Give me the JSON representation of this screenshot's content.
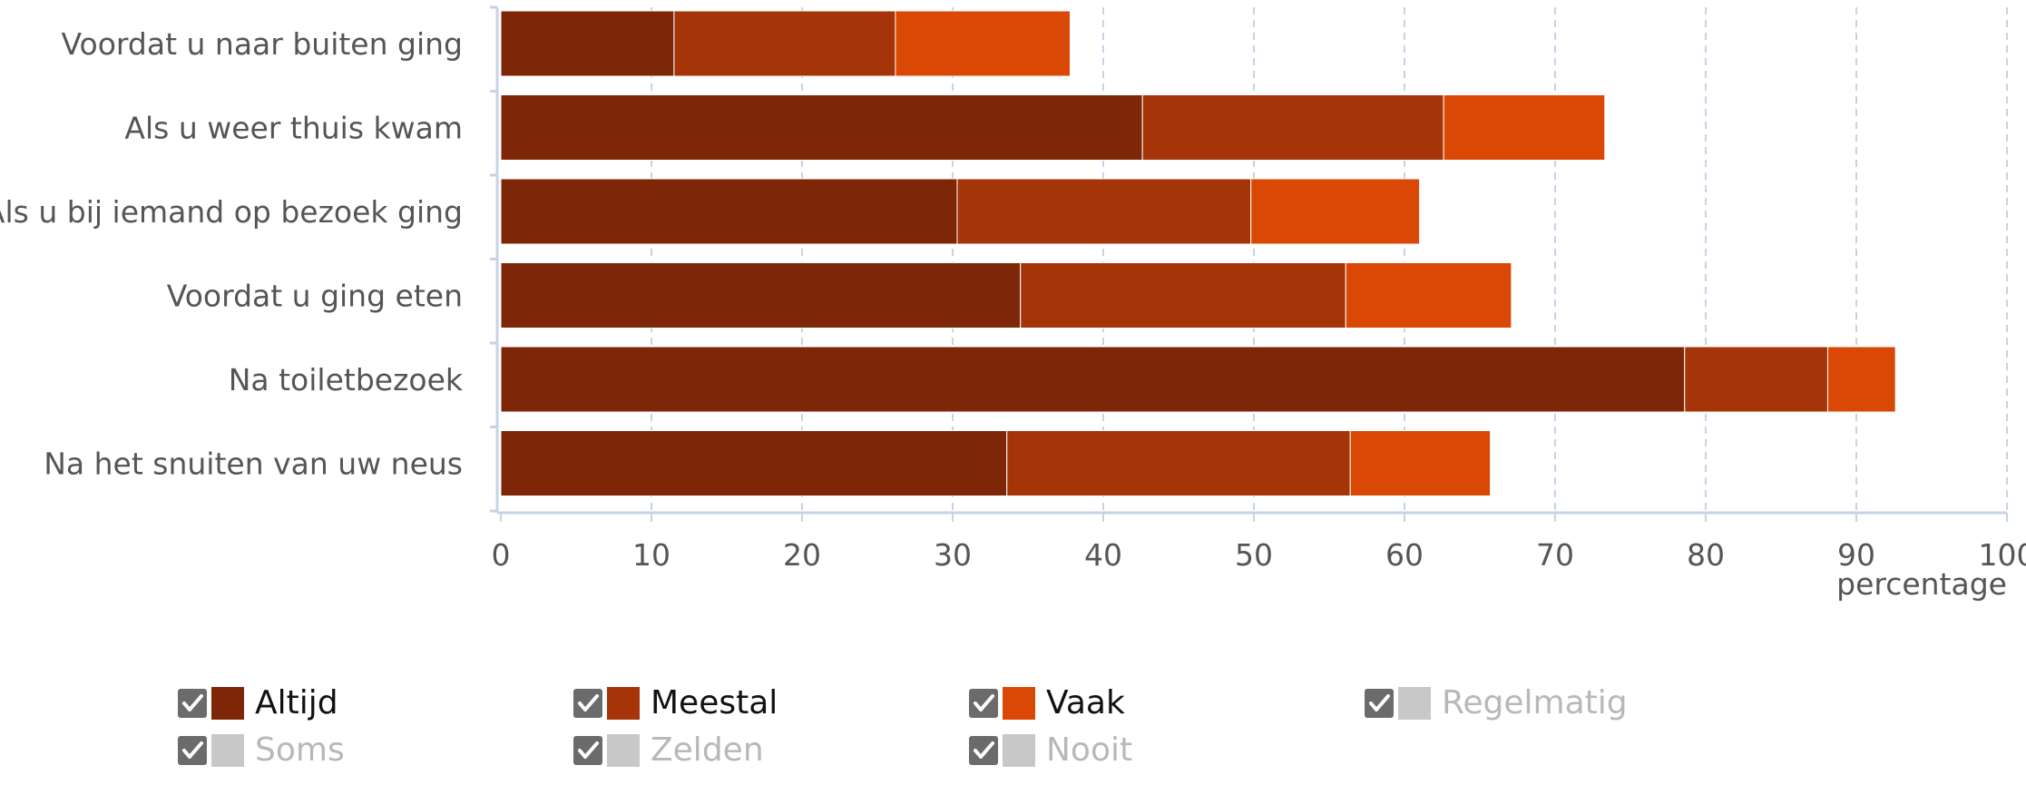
{
  "chart_data": {
    "type": "bar",
    "orientation": "horizontal",
    "stacked": true,
    "categories": [
      "Voordat u naar buiten ging",
      "Als u weer thuis kwam",
      "Als u bij iemand op bezoek ging",
      "Voordat u ging eten",
      "Na toiletbezoek",
      "Na het snuiten van uw neus"
    ],
    "series": [
      {
        "name": "Altijd",
        "color": "#7e2608",
        "values": [
          11.5,
          42.6,
          30.3,
          34.5,
          78.6,
          33.6
        ]
      },
      {
        "name": "Meestal",
        "color": "#a63409",
        "values": [
          14.7,
          20.0,
          19.5,
          21.6,
          9.5,
          22.8
        ]
      },
      {
        "name": "Vaak",
        "color": "#d94804",
        "values": [
          11.6,
          10.7,
          11.2,
          11.0,
          4.5,
          9.3
        ]
      }
    ],
    "xlabel": "percentage",
    "ylabel": "",
    "xlim": [
      0,
      100
    ],
    "xticks": [
      "0",
      "10",
      "20",
      "30",
      "40",
      "50",
      "60",
      "70",
      "80",
      "90",
      "100"
    ],
    "grid": "vertical dashed",
    "legend_position": "bottom"
  },
  "legend": [
    {
      "label": "Altijd",
      "color": "#7e2608",
      "active": true
    },
    {
      "label": "Meestal",
      "color": "#a63409",
      "active": true
    },
    {
      "label": "Vaak",
      "color": "#d94804",
      "active": true
    },
    {
      "label": "Regelmatig",
      "color": "#c8c8c8",
      "active": false
    },
    {
      "label": "Soms",
      "color": "#c8c8c8",
      "active": false
    },
    {
      "label": "Zelden",
      "color": "#c8c8c8",
      "active": false
    },
    {
      "label": "Nooit",
      "color": "#c8c8c8",
      "active": false
    }
  ]
}
